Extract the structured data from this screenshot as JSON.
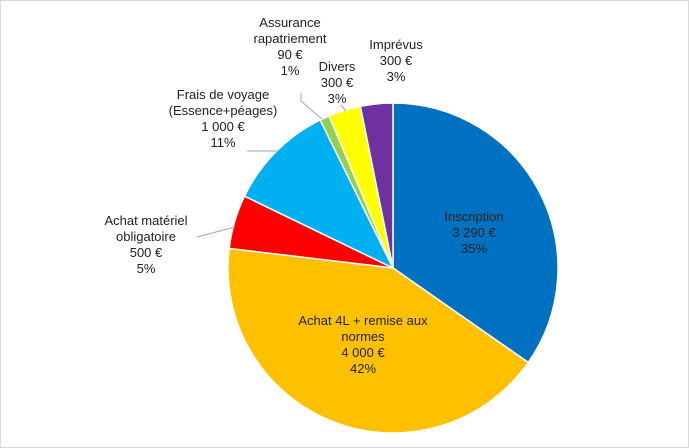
{
  "chart_data": {
    "type": "pie",
    "categories": [
      "Inscription",
      "Achat 4L + remise aux normes",
      "Achat matériel obligatoire",
      "Frais de voyage (Essence+péages)",
      "Assurance rapatriement",
      "Divers",
      "Imprévus"
    ],
    "values": [
      3290,
      4000,
      500,
      1000,
      90,
      300,
      300
    ],
    "value_labels": [
      "3 290 €",
      "4 000 €",
      "500 €",
      "1 000 €",
      "90 €",
      "300 €",
      "300 €"
    ],
    "percents": [
      35,
      42,
      5,
      11,
      1,
      3,
      3
    ],
    "percent_labels": [
      "35%",
      "42%",
      "5%",
      "11%",
      "1%",
      "3%",
      "3%"
    ],
    "colors": [
      "#0070c0",
      "#ffc000",
      "#ff0000",
      "#00b0f0",
      "#92d050",
      "#ffff00",
      "#7030a0"
    ]
  }
}
